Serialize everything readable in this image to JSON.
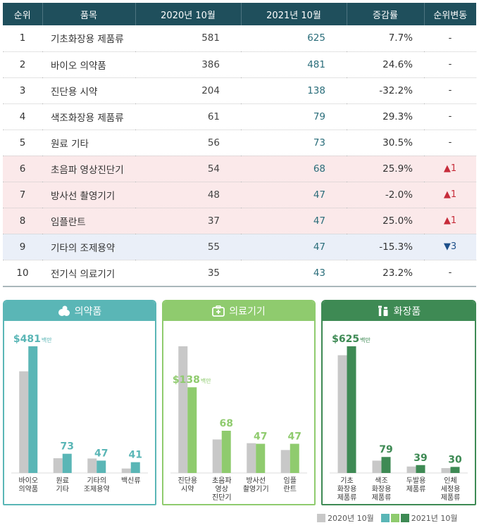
{
  "table": {
    "headers": [
      "순위",
      "품목",
      "2020년 10월",
      "2021년 10월",
      "증감률",
      "순위변동"
    ],
    "rows": [
      {
        "rank": "1",
        "name": "기초화장용 제품류",
        "v2020": "581",
        "v2021": "625",
        "change": "7.7%",
        "movement": "-",
        "highlight": ""
      },
      {
        "rank": "2",
        "name": "바이오 의약품",
        "v2020": "386",
        "v2021": "481",
        "change": "24.6%",
        "movement": "-",
        "highlight": ""
      },
      {
        "rank": "3",
        "name": "진단용 시약",
        "v2020": "204",
        "v2021": "138",
        "change": "-32.2%",
        "movement": "-",
        "highlight": ""
      },
      {
        "rank": "4",
        "name": "색조화장용 제품류",
        "v2020": "61",
        "v2021": "79",
        "change": "29.3%",
        "movement": "-",
        "highlight": ""
      },
      {
        "rank": "5",
        "name": "원료 기타",
        "v2020": "56",
        "v2021": "73",
        "change": "30.5%",
        "movement": "-",
        "highlight": ""
      },
      {
        "rank": "6",
        "name": "초음파 영상진단기",
        "v2020": "54",
        "v2021": "68",
        "change": "25.9%",
        "movement": "▲1",
        "highlight": "up"
      },
      {
        "rank": "7",
        "name": "방사선 촬영기기",
        "v2020": "48",
        "v2021": "47",
        "change": "-2.0%",
        "movement": "▲1",
        "highlight": "up"
      },
      {
        "rank": "8",
        "name": "임플란트",
        "v2020": "37",
        "v2021": "47",
        "change": "25.0%",
        "movement": "▲1",
        "highlight": "up"
      },
      {
        "rank": "9",
        "name": "기타의 조제용약",
        "v2020": "55",
        "v2021": "47",
        "change": "-15.3%",
        "movement": "▼3",
        "highlight": "down"
      },
      {
        "rank": "10",
        "name": "전기식 의료기기",
        "v2020": "35",
        "v2021": "43",
        "change": "23.2%",
        "movement": "-",
        "highlight": ""
      }
    ]
  },
  "chart_data": [
    {
      "type": "bar",
      "title": "의약품",
      "icon": "pill-icon",
      "color_2020": "#c8c8c8",
      "color_2021": "#5ab6b6",
      "categories": [
        [
          "바이오",
          "의약품"
        ],
        [
          "원료",
          "기타"
        ],
        [
          "기타의",
          "조제용약"
        ],
        [
          "백신류"
        ]
      ],
      "series": [
        {
          "name": "2020년 10월",
          "values": [
            386,
            56,
            55,
            17
          ]
        },
        {
          "name": "2021년 10월",
          "values": [
            481,
            73,
            47,
            41
          ]
        }
      ],
      "value_labels": [
        "$481",
        "73",
        "47",
        "41"
      ],
      "first_label_unit": "백만"
    },
    {
      "type": "bar",
      "title": "의료기기",
      "icon": "medical-kit-icon",
      "color_2020": "#c8c8c8",
      "color_2021": "#8fcb6e",
      "categories": [
        [
          "진단용",
          "시약"
        ],
        [
          "초음파",
          "영상",
          "진단기"
        ],
        [
          "방사선",
          "촬영기기"
        ],
        [
          "임플",
          "란트"
        ]
      ],
      "series": [
        {
          "name": "2020년 10월",
          "values": [
            204,
            54,
            48,
            37
          ]
        },
        {
          "name": "2021년 10월",
          "values": [
            138,
            68,
            47,
            47
          ]
        }
      ],
      "value_labels": [
        "$138",
        "68",
        "47",
        "47"
      ],
      "first_label_unit": "백만"
    },
    {
      "type": "bar",
      "title": "화장품",
      "icon": "cosmetics-icon",
      "color_2020": "#c8c8c8",
      "color_2021": "#3e8a54",
      "categories": [
        [
          "기초",
          "화장용",
          "제품류"
        ],
        [
          "색조",
          "화장용",
          "제품류"
        ],
        [
          "두발용",
          "제품류"
        ],
        [
          "인체",
          "세정용",
          "제품류"
        ]
      ],
      "series": [
        {
          "name": "2020년 10월",
          "values": [
            581,
            61,
            32,
            24
          ]
        },
        {
          "name": "2021년 10월",
          "values": [
            625,
            79,
            39,
            30
          ]
        }
      ],
      "value_labels": [
        "$625",
        "79",
        "39",
        "30"
      ],
      "first_label_unit": "백만"
    }
  ],
  "legend": {
    "label_2020": "2020년 10월",
    "label_2021": "2021년 10월",
    "color_2020": "#c8c8c8",
    "swatch_colors": [
      "#5ab6b6",
      "#8fcb6e",
      "#3e8a54"
    ]
  },
  "theme": {
    "header_bg": "#1f4f5c"
  }
}
